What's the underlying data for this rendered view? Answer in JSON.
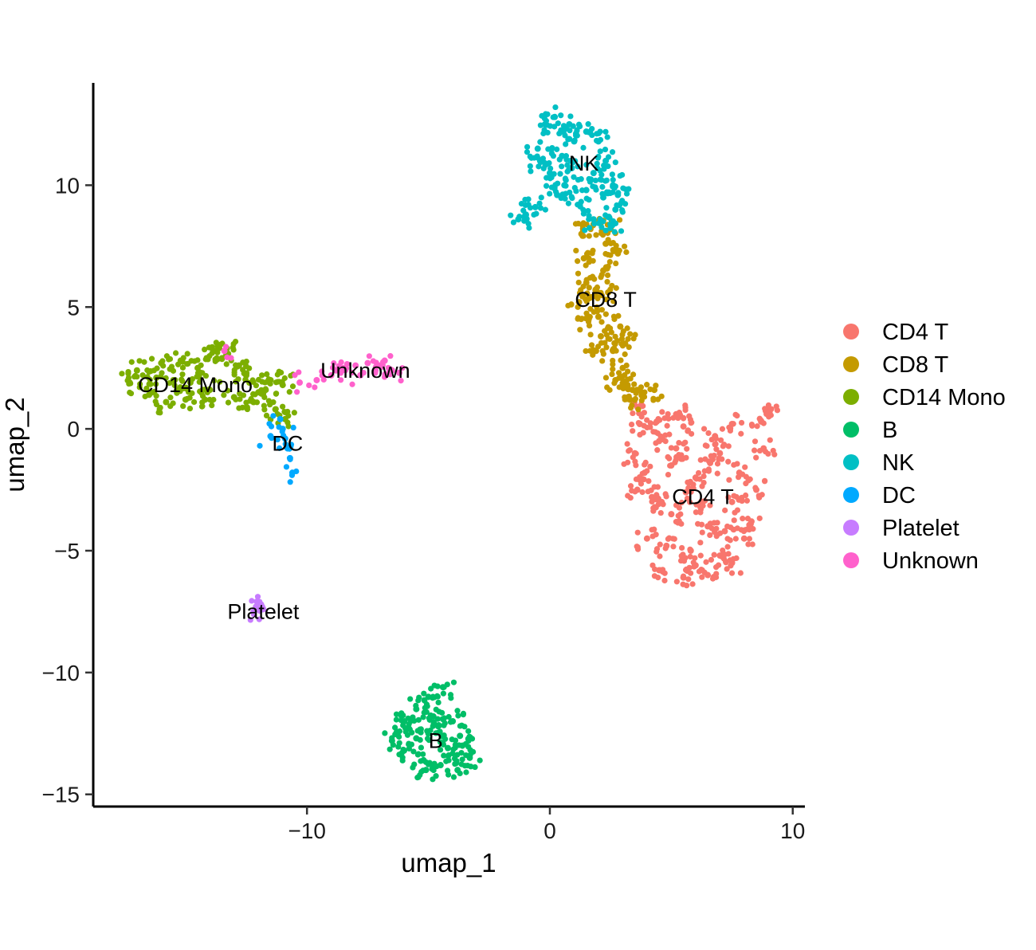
{
  "chart_data": {
    "type": "scatter",
    "xlabel": "umap_1",
    "ylabel": "umap_2",
    "xlim": [
      -18.8,
      10.5
    ],
    "ylim": [
      -15.5,
      14.2
    ],
    "x_ticks": [
      {
        "value": -10,
        "label": "−10"
      },
      {
        "value": 0,
        "label": "0"
      },
      {
        "value": 10,
        "label": "10"
      }
    ],
    "y_ticks": [
      {
        "value": 10,
        "label": "10"
      },
      {
        "value": 5,
        "label": "5"
      },
      {
        "value": 0,
        "label": "0"
      },
      {
        "value": -5,
        "label": "−5"
      },
      {
        "value": -10,
        "label": "−10"
      },
      {
        "value": -15,
        "label": "−15"
      }
    ],
    "grid": false,
    "legend_position": "right",
    "series": [
      {
        "name": "CD4 T",
        "color": "#F8766D",
        "label_pos": [
          6.3,
          -2.8
        ],
        "points": [
          [
            3.6,
            0.9
          ],
          [
            5.2,
            0.6
          ],
          [
            7.5,
            0.2
          ],
          [
            9.0,
            0.8
          ],
          [
            8.8,
            -0.8
          ],
          [
            8.5,
            -2.5
          ],
          [
            8.0,
            -4.5
          ],
          [
            7.5,
            -5.5
          ],
          [
            6.5,
            -6.0
          ],
          [
            5.5,
            -6.1
          ],
          [
            4.5,
            -5.8
          ],
          [
            4.0,
            -4.5
          ],
          [
            3.6,
            -2.5
          ],
          [
            3.5,
            -1.0
          ],
          [
            4.5,
            -0.5
          ],
          [
            5.0,
            -1.5
          ],
          [
            6.0,
            -2.0
          ],
          [
            7.0,
            -1.0
          ],
          [
            7.5,
            -3.0
          ],
          [
            6.5,
            -4.0
          ],
          [
            5.0,
            -3.5
          ],
          [
            5.8,
            -5.0
          ],
          [
            4.2,
            -2.8
          ],
          [
            6.8,
            -0.3
          ],
          [
            7.8,
            -1.8
          ],
          [
            5.5,
            0.1
          ],
          [
            4.8,
            -4.8
          ],
          [
            6.2,
            -3.2
          ],
          [
            8.3,
            -3.8
          ],
          [
            3.9,
            -1.8
          ],
          [
            7.0,
            -5.2
          ],
          [
            5.6,
            -2.6
          ],
          [
            4.4,
            0.3
          ],
          [
            8.7,
            0.3
          ],
          [
            6.0,
            -5.6
          ],
          [
            5.2,
            -0.8
          ],
          [
            7.2,
            -4.2
          ],
          [
            3.7,
            0.2
          ],
          [
            6.6,
            -1.4
          ],
          [
            4.6,
            -3.0
          ]
        ]
      },
      {
        "name": "CD8 T",
        "color": "#C49A00",
        "label_pos": [
          2.3,
          5.3
        ],
        "points": [
          [
            1.3,
            8.0
          ],
          [
            1.8,
            8.4
          ],
          [
            2.5,
            8.2
          ],
          [
            2.8,
            7.2
          ],
          [
            2.2,
            6.5
          ],
          [
            1.5,
            6.0
          ],
          [
            1.2,
            5.2
          ],
          [
            1.6,
            4.5
          ],
          [
            2.1,
            3.8
          ],
          [
            2.6,
            3.2
          ],
          [
            3.0,
            2.5
          ],
          [
            3.4,
            1.6
          ],
          [
            3.3,
            1.2
          ],
          [
            2.7,
            2.0
          ],
          [
            2.0,
            4.6
          ],
          [
            1.4,
            7.0
          ],
          [
            2.4,
            5.6
          ],
          [
            2.9,
            4.2
          ],
          [
            3.1,
            3.5
          ],
          [
            1.7,
            5.4
          ],
          [
            4.3,
            1.6
          ],
          [
            2.3,
            7.6
          ],
          [
            1.9,
            3.2
          ],
          [
            3.2,
            1.8
          ]
        ]
      },
      {
        "name": "CD14 Mono",
        "color": "#7CAE00",
        "label_pos": [
          -14.6,
          1.8
        ],
        "points": [
          [
            -17.3,
            1.9
          ],
          [
            -17.0,
            2.4
          ],
          [
            -16.5,
            1.4
          ],
          [
            -16.0,
            2.7
          ],
          [
            -15.5,
            2.0
          ],
          [
            -15.0,
            1.2
          ],
          [
            -14.5,
            2.5
          ],
          [
            -14.0,
            1.6
          ],
          [
            -13.5,
            2.9
          ],
          [
            -13.0,
            1.3
          ],
          [
            -12.5,
            2.2
          ],
          [
            -12.0,
            1.5
          ],
          [
            -11.5,
            2.0
          ],
          [
            -11.0,
            1.8
          ],
          [
            -15.8,
            1.1
          ],
          [
            -13.8,
            3.2
          ],
          [
            -16.2,
            2.1
          ],
          [
            -14.8,
            1.9
          ],
          [
            -12.8,
            2.6
          ],
          [
            -12.2,
            1.1
          ],
          [
            -13.3,
            3.3
          ],
          [
            -11.7,
            1.6
          ],
          [
            -11.3,
            0.8
          ],
          [
            -15.2,
            2.8
          ],
          [
            -14.2,
            1.2
          ],
          [
            -10.9,
            0.4
          ]
        ]
      },
      {
        "name": "B",
        "color": "#00BE67",
        "label_pos": [
          -4.7,
          -12.8
        ],
        "points": [
          [
            -6.5,
            -12.8
          ],
          [
            -6.0,
            -12.0
          ],
          [
            -5.5,
            -11.5
          ],
          [
            -5.0,
            -11.0
          ],
          [
            -4.4,
            -10.6
          ],
          [
            -4.0,
            -12.0
          ],
          [
            -3.6,
            -13.0
          ],
          [
            -3.3,
            -13.5
          ],
          [
            -3.8,
            -14.0
          ],
          [
            -4.5,
            -13.8
          ],
          [
            -5.2,
            -13.6
          ],
          [
            -6.0,
            -13.2
          ],
          [
            -5.0,
            -12.5
          ],
          [
            -4.6,
            -12.2
          ],
          [
            -5.5,
            -12.7
          ],
          [
            -4.2,
            -13.1
          ],
          [
            -5.8,
            -12.3
          ],
          [
            -4.8,
            -11.8
          ],
          [
            -3.7,
            -12.6
          ],
          [
            -5.1,
            -14.0
          ]
        ]
      },
      {
        "name": "NK",
        "color": "#00BFC4",
        "label_pos": [
          1.4,
          10.9
        ],
        "points": [
          [
            -0.5,
            11.5
          ],
          [
            -0.2,
            12.5
          ],
          [
            0.2,
            12.8
          ],
          [
            0.8,
            12.5
          ],
          [
            1.5,
            12.2
          ],
          [
            2.0,
            11.8
          ],
          [
            2.3,
            11.0
          ],
          [
            2.6,
            10.0
          ],
          [
            2.7,
            9.0
          ],
          [
            2.5,
            8.4
          ],
          [
            1.8,
            8.6
          ],
          [
            1.2,
            9.2
          ],
          [
            0.6,
            10.0
          ],
          [
            0.0,
            10.5
          ],
          [
            -0.4,
            11.0
          ],
          [
            0.5,
            11.2
          ],
          [
            1.0,
            11.8
          ],
          [
            1.8,
            10.5
          ],
          [
            2.2,
            9.5
          ],
          [
            1.5,
            9.8
          ],
          [
            -0.6,
            9.1
          ],
          [
            -1.0,
            8.8
          ],
          [
            -1.3,
            8.6
          ],
          [
            0.3,
            9.6
          ],
          [
            2.8,
            9.6
          ],
          [
            0.9,
            10.7
          ]
        ]
      },
      {
        "name": "DC",
        "color": "#00A9FF",
        "label_pos": [
          -10.8,
          -0.6
        ],
        "points": [
          [
            -11.1,
            0.4
          ],
          [
            -11.0,
            0.0
          ],
          [
            -10.9,
            -0.4
          ],
          [
            -10.8,
            -0.8
          ],
          [
            -10.7,
            -1.2
          ],
          [
            -10.6,
            -1.8
          ],
          [
            -11.5,
            -0.3
          ]
        ]
      },
      {
        "name": "Platelet",
        "color": "#C77CFF",
        "label_pos": [
          -11.8,
          -7.5
        ],
        "points": [
          [
            -12.1,
            -7.3
          ],
          [
            -11.9,
            -7.2
          ],
          [
            -12.2,
            -7.5
          ],
          [
            -11.8,
            -7.4
          ]
        ]
      },
      {
        "name": "Unknown",
        "color": "#FF61CC",
        "label_pos": [
          -7.6,
          2.4
        ],
        "points": [
          [
            -10.3,
            1.9
          ],
          [
            -9.6,
            2.0
          ],
          [
            -9.0,
            2.2
          ],
          [
            -8.5,
            2.5
          ],
          [
            -8.0,
            2.6
          ],
          [
            -7.5,
            2.7
          ],
          [
            -7.0,
            2.6
          ],
          [
            -6.5,
            2.4
          ],
          [
            -6.2,
            2.3
          ],
          [
            -7.8,
            2.2
          ],
          [
            -7.2,
            2.3
          ],
          [
            -8.8,
            2.4
          ],
          [
            -6.8,
            2.8
          ],
          [
            -13.4,
            3.2
          ]
        ]
      }
    ]
  }
}
